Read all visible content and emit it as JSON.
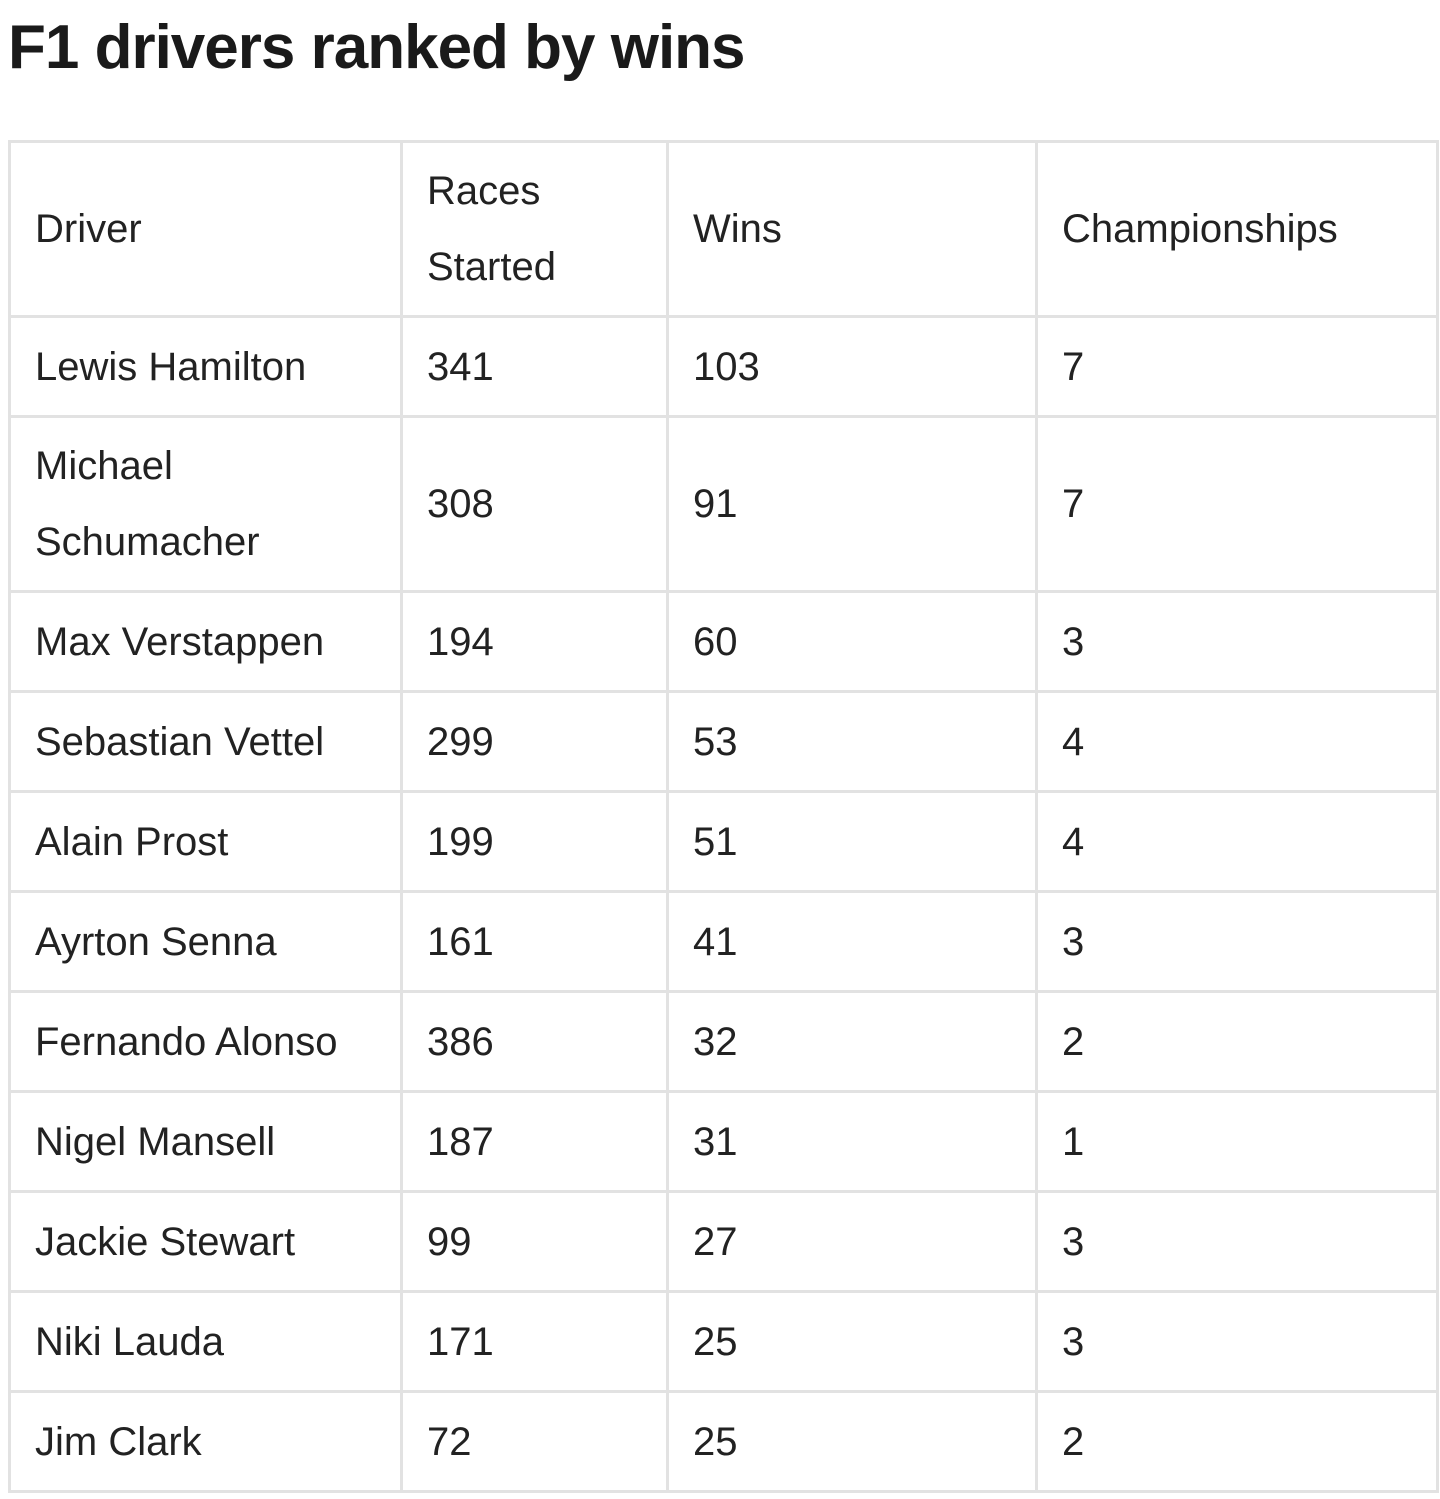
{
  "title": "F1 drivers ranked by wins",
  "table": {
    "headers": {
      "driver": "Driver",
      "races_started": "Races Started",
      "wins": "Wins",
      "championships": "Championships"
    },
    "rows": [
      {
        "driver": "Lewis Hamilton",
        "races_started": "341",
        "wins": "103",
        "championships": "7"
      },
      {
        "driver": "Michael Schumacher",
        "races_started": "308",
        "wins": "91",
        "championships": "7"
      },
      {
        "driver": "Max Verstappen",
        "races_started": "194",
        "wins": "60",
        "championships": "3"
      },
      {
        "driver": "Sebastian Vettel",
        "races_started": "299",
        "wins": "53",
        "championships": "4"
      },
      {
        "driver": "Alain Prost",
        "races_started": "199",
        "wins": "51",
        "championships": "4"
      },
      {
        "driver": "Ayrton Senna",
        "races_started": "161",
        "wins": "41",
        "championships": "3"
      },
      {
        "driver": "Fernando Alonso",
        "races_started": "386",
        "wins": "32",
        "championships": "2"
      },
      {
        "driver": "Nigel Mansell",
        "races_started": "187",
        "wins": "31",
        "championships": "1"
      },
      {
        "driver": "Jackie Stewart",
        "races_started": "99",
        "wins": "27",
        "championships": "3"
      },
      {
        "driver": "Niki Lauda",
        "races_started": "171",
        "wins": "25",
        "championships": "3"
      },
      {
        "driver": "Jim Clark",
        "races_started": "72",
        "wins": "25",
        "championships": "2"
      }
    ]
  }
}
